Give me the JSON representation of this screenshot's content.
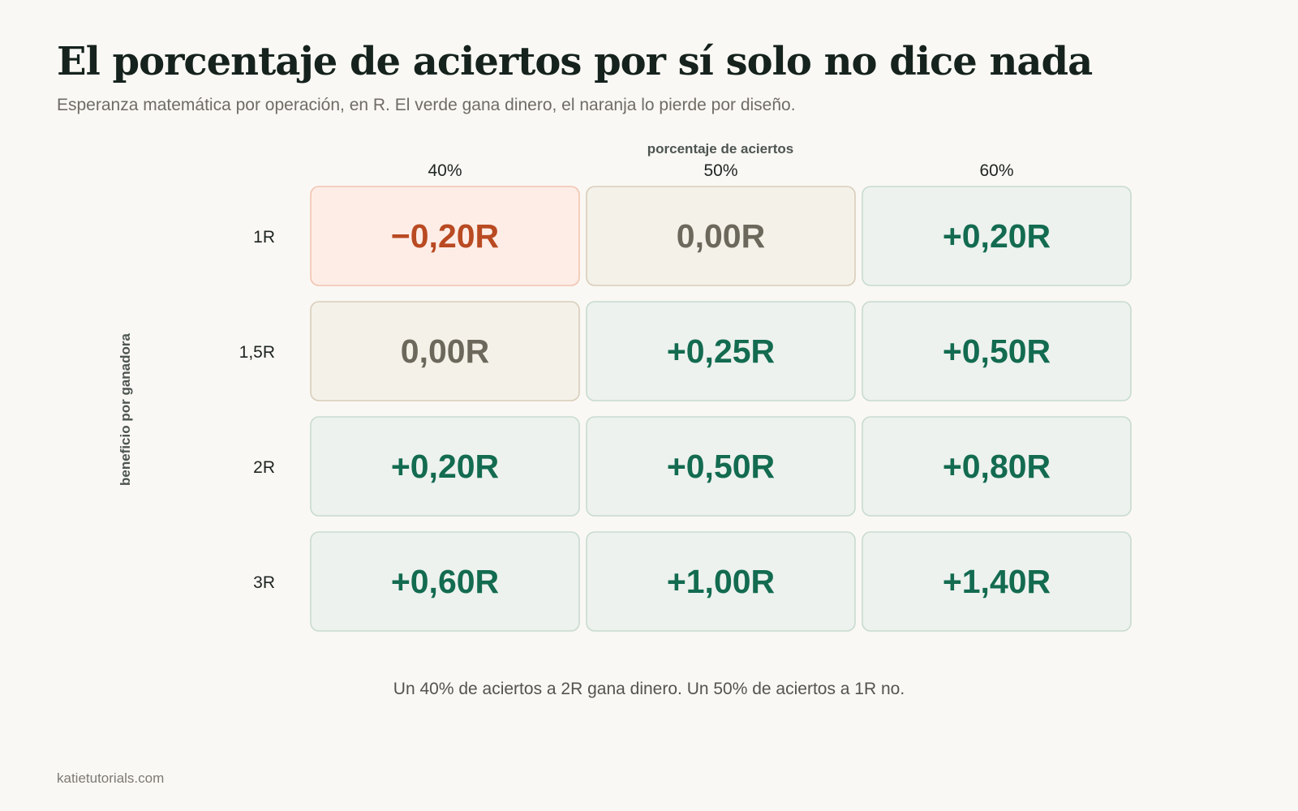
{
  "title": "El porcentaje de aciertos por sí solo no dice nada",
  "subtitle": "Esperanza matemática por operación, en R. El verde gana dinero, el naranja lo pierde por diseño.",
  "footnote": "Un 40% de aciertos a 2R gana dinero. Un 50% de aciertos a 1R no.",
  "source": "katietutorials.com",
  "colors": {
    "positive": {
      "fill": "#edf2ee",
      "stroke": "#c8dbd0",
      "text": "#136b50"
    },
    "neutral": {
      "fill": "#f4f1e9",
      "stroke": "#d8cdb9",
      "text": "#6c685c"
    },
    "negative": {
      "fill": "#fdede6",
      "stroke": "#f2c3b1",
      "text": "#b94a22"
    }
  },
  "chart_data": {
    "type": "heatmap",
    "title": "El porcentaje de aciertos por sí solo no dice nada",
    "subtitle": "Esperanza matemática por operación, en R. El verde gana dinero, el naranja lo pierde por diseño.",
    "xlabel": "porcentaje de aciertos",
    "ylabel": "beneficio por ganadora",
    "x": [
      "40%",
      "50%",
      "60%"
    ],
    "y": [
      "1R",
      "1,5R",
      "2R",
      "3R"
    ],
    "values": [
      [
        -0.2,
        0.0,
        0.2
      ],
      [
        0.0,
        0.25,
        0.5
      ],
      [
        0.2,
        0.5,
        0.8
      ],
      [
        0.6,
        1.0,
        1.4
      ]
    ],
    "labels": [
      [
        "−0,20R",
        "0,00R",
        "+0,20R"
      ],
      [
        "0,00R",
        "+0,25R",
        "+0,50R"
      ],
      [
        "+0,20R",
        "+0,50R",
        "+0,80R"
      ],
      [
        "+0,60R",
        "+1,00R",
        "+1,40R"
      ]
    ]
  }
}
